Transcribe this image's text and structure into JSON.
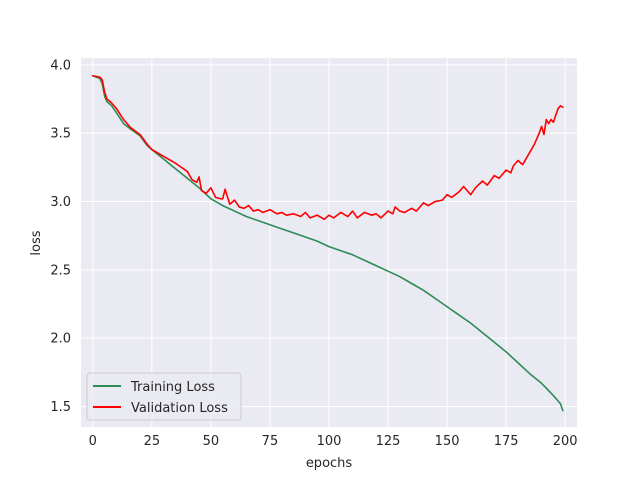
{
  "chart_data": {
    "type": "line",
    "title": "",
    "xlabel": "epochs",
    "ylabel": "loss",
    "xlim": [
      -5,
      205
    ],
    "ylim": [
      1.35,
      4.05
    ],
    "xticks": [
      0,
      25,
      50,
      75,
      100,
      125,
      150,
      175,
      200
    ],
    "yticks": [
      1.5,
      2.0,
      2.5,
      3.0,
      3.5,
      4.0
    ],
    "ytick_labels": [
      "1.5",
      "2.0",
      "2.5",
      "3.0",
      "3.5",
      "4.0"
    ],
    "grid": true,
    "legend_position": "lower-left",
    "series": [
      {
        "name": "Training Loss",
        "color": "#2e8b57",
        "x": [
          0,
          3,
          4,
          5,
          6,
          8,
          10,
          13,
          16,
          20,
          23,
          25,
          30,
          35,
          40,
          45,
          50,
          55,
          60,
          65,
          70,
          75,
          80,
          85,
          90,
          95,
          100,
          105,
          110,
          115,
          120,
          125,
          130,
          135,
          140,
          145,
          150,
          155,
          160,
          165,
          170,
          175,
          180,
          185,
          190,
          195,
          198,
          199
        ],
        "y": [
          3.92,
          3.9,
          3.86,
          3.77,
          3.73,
          3.7,
          3.65,
          3.57,
          3.53,
          3.48,
          3.41,
          3.38,
          3.31,
          3.24,
          3.17,
          3.1,
          3.02,
          2.97,
          2.93,
          2.89,
          2.86,
          2.83,
          2.8,
          2.77,
          2.74,
          2.71,
          2.67,
          2.64,
          2.61,
          2.57,
          2.53,
          2.49,
          2.45,
          2.4,
          2.35,
          2.29,
          2.23,
          2.17,
          2.11,
          2.04,
          1.97,
          1.9,
          1.82,
          1.74,
          1.67,
          1.58,
          1.52,
          1.47
        ]
      },
      {
        "name": "Validation Loss",
        "color": "#ff0000",
        "x": [
          0,
          3,
          4,
          5,
          6,
          8,
          10,
          13,
          16,
          20,
          23,
          25,
          30,
          35,
          40,
          42,
          44,
          45,
          46,
          48,
          50,
          52,
          54,
          55,
          56,
          58,
          60,
          62,
          64,
          66,
          68,
          70,
          72,
          75,
          78,
          80,
          82,
          85,
          88,
          90,
          92,
          95,
          98,
          100,
          102,
          105,
          108,
          110,
          112,
          115,
          118,
          120,
          122,
          125,
          127,
          128,
          130,
          132,
          135,
          137,
          140,
          142,
          145,
          148,
          150,
          152,
          155,
          157,
          160,
          162,
          165,
          167,
          170,
          172,
          175,
          177,
          178,
          180,
          182,
          185,
          187,
          189,
          190,
          191,
          192,
          193,
          194,
          195,
          196,
          197,
          198,
          199
        ],
        "y": [
          3.92,
          3.91,
          3.89,
          3.8,
          3.75,
          3.72,
          3.68,
          3.6,
          3.54,
          3.49,
          3.42,
          3.38,
          3.33,
          3.28,
          3.22,
          3.16,
          3.14,
          3.18,
          3.08,
          3.06,
          3.1,
          3.03,
          3.02,
          3.02,
          3.09,
          2.98,
          3.01,
          2.96,
          2.95,
          2.97,
          2.93,
          2.94,
          2.92,
          2.94,
          2.91,
          2.92,
          2.9,
          2.91,
          2.89,
          2.92,
          2.88,
          2.9,
          2.87,
          2.9,
          2.88,
          2.92,
          2.89,
          2.93,
          2.88,
          2.92,
          2.9,
          2.91,
          2.88,
          2.93,
          2.91,
          2.96,
          2.93,
          2.92,
          2.95,
          2.93,
          2.99,
          2.97,
          3.0,
          3.01,
          3.05,
          3.03,
          3.07,
          3.11,
          3.05,
          3.1,
          3.15,
          3.12,
          3.19,
          3.17,
          3.23,
          3.21,
          3.26,
          3.3,
          3.27,
          3.36,
          3.42,
          3.5,
          3.55,
          3.49,
          3.6,
          3.57,
          3.6,
          3.58,
          3.63,
          3.68,
          3.7,
          3.69
        ]
      }
    ]
  }
}
